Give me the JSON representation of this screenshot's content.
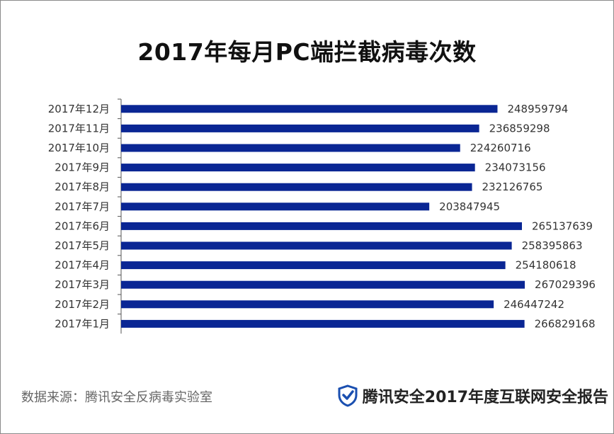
{
  "title": "2017年每月PC端拦截病毒次数",
  "footer": {
    "source": "数据来源：腾讯安全反病毒实验室",
    "brand": "腾讯安全2017年度互联网安全报告"
  },
  "colors": {
    "bar": "#0a2694",
    "axis": "#555555",
    "text": "#333333",
    "shield": "#1a4fb0"
  },
  "chart_data": {
    "type": "bar",
    "orientation": "horizontal",
    "title": "2017年每月PC端拦截病毒次数",
    "categories": [
      "2017年12月",
      "2017年11月",
      "2017年10月",
      "2017年9月",
      "2017年8月",
      "2017年7月",
      "2017年6月",
      "2017年5月",
      "2017年4月",
      "2017年3月",
      "2017年2月",
      "2017年1月"
    ],
    "values": [
      248959794,
      236859298,
      224260716,
      234073156,
      232126765,
      203847945,
      265137639,
      258395863,
      254180618,
      267029396,
      246447242,
      266829168
    ],
    "data_labels": true,
    "xlim": [
      0,
      300000000
    ],
    "grid": false,
    "legend": "none"
  }
}
